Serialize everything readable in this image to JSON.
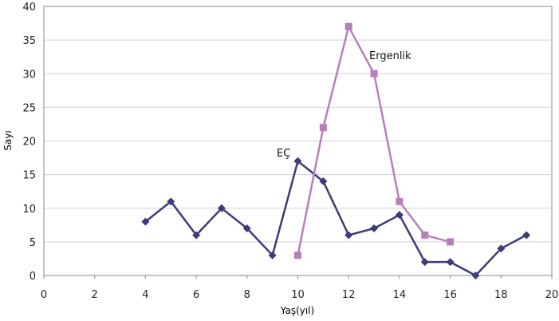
{
  "chart_data": {
    "type": "line",
    "xlabel": "Yaş(yıl)",
    "ylabel": "Sayı",
    "xlim": [
      0,
      20
    ],
    "ylim": [
      0,
      40
    ],
    "xticks": [
      0,
      2,
      4,
      6,
      8,
      10,
      12,
      14,
      16,
      18,
      20
    ],
    "yticks": [
      0,
      5,
      10,
      15,
      20,
      25,
      30,
      35,
      40
    ],
    "grid": "horizontal",
    "legend": "none",
    "series": [
      {
        "name": "EÇ",
        "color": "#3d3b78",
        "marker": "diamond",
        "x": [
          4,
          5,
          6,
          7,
          8,
          9,
          10,
          11,
          12,
          13,
          14,
          15,
          16,
          17,
          18,
          19
        ],
        "y": [
          8,
          11,
          6,
          10,
          7,
          3,
          17,
          14,
          6,
          7,
          9,
          2,
          2,
          0,
          4,
          6
        ]
      },
      {
        "name": "Ergenlik",
        "color": "#b77fb8",
        "marker": "square",
        "x": [
          10,
          11,
          12,
          13,
          14,
          15,
          16
        ],
        "y": [
          3,
          22,
          37,
          30,
          11,
          6,
          5
        ]
      }
    ],
    "annotations": [
      {
        "text": "EÇ",
        "series": "EÇ"
      },
      {
        "text": "Ergenlik",
        "series": "Ergenlik"
      }
    ]
  }
}
